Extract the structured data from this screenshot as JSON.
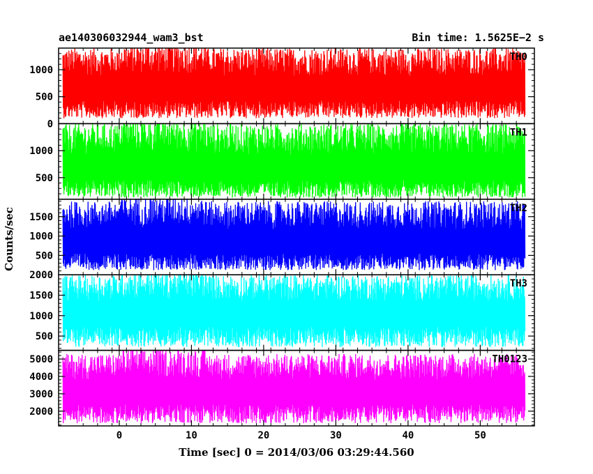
{
  "header": {
    "title": "ae140306032944_wam3_bst",
    "bin_time": "Bin time: 1.5625E−2 s"
  },
  "chart_data": {
    "type": "line",
    "xlabel": "Time [sec] 0 = 2014/03/06 03:29:44.560",
    "ylabel": "Counts/sec",
    "xlim": [
      -8.4,
      57.5
    ],
    "data_x_range": [
      -7.8,
      56.2
    ],
    "xticks": [
      0,
      10,
      20,
      30,
      40,
      50
    ],
    "bin_time_s": 0.015625,
    "panels": [
      {
        "name": "TH0",
        "color": "#ff0000",
        "ylim": [
          0,
          1400
        ],
        "yticks": [
          0,
          500,
          1000
        ],
        "mean": 600,
        "low": 100,
        "high": 1400
      },
      {
        "name": "TH1",
        "color": "#00ff00",
        "ylim": [
          100,
          1500
        ],
        "yticks": [
          500,
          1000
        ],
        "mean": 620,
        "low": 130,
        "high": 1500
      },
      {
        "name": "TH2",
        "color": "#0000ff",
        "ylim": [
          0,
          1950
        ],
        "yticks": [
          500,
          1000,
          1500
        ],
        "mean": 780,
        "low": 120,
        "high": 1900
      },
      {
        "name": "TH3",
        "color": "#00ffff",
        "ylim": [
          150,
          2000
        ],
        "yticks": [
          500,
          1000,
          1500,
          2000
        ],
        "mean": 1000,
        "low": 230,
        "high": 2000
      },
      {
        "name": "TH0123",
        "color": "#ff00ff",
        "ylim": [
          1150,
          5500
        ],
        "yticks": [
          2000,
          3000,
          4000,
          5000
        ],
        "mean": 3000,
        "low": 1300,
        "high": 5300
      }
    ]
  }
}
